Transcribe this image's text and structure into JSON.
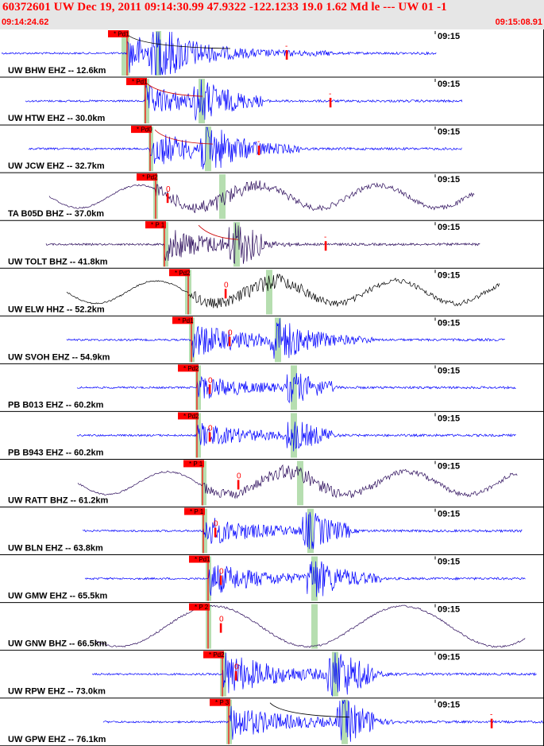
{
  "header": {
    "title": "60372601 UW Dec 19, 2011 09:14:30.99    47.9322 -122.1233 19.0 1.62 Md le --- UW 01   -1",
    "start_time": "09:14:24.62",
    "end_time": "09:15:08.91"
  },
  "colors": {
    "header_text": "#ff0000",
    "header_bg": "#e6e6e6",
    "pick_flag": "#ff0000",
    "window_band": "#b6deb0"
  },
  "time_marker": "09:15",
  "traces": [
    {
      "label": "UW BHW EHZ -- 12.6km",
      "pick": "Pd1",
      "color": "#0000ff",
      "style": "hf",
      "marker": "-"
    },
    {
      "label": "UW HTW EHZ -- 30.0km",
      "pick": "Pd1",
      "color": "#0000ff",
      "style": "hf",
      "marker": "-"
    },
    {
      "label": "UW JCW EHZ -- 32.7km",
      "pick": "Pd0",
      "color": "#0000ff",
      "style": "hf",
      "marker": "-"
    },
    {
      "label": "TA B05D BHZ -- 37.0km",
      "pick": "Pd2",
      "color": "#2a0a5a",
      "style": "lf",
      "marker": "0"
    },
    {
      "label": "UW TOLT BHZ -- 41.8km",
      "pick": "P 1",
      "color": "#2a0a5a",
      "style": "hf",
      "marker": "-"
    },
    {
      "label": "UW ELW HHZ -- 52.2km",
      "pick": "Pd2",
      "color": "#000000",
      "style": "lf",
      "marker": "0"
    },
    {
      "label": "UW SVOH EHZ -- 54.9km",
      "pick": "Pd1",
      "color": "#0000ff",
      "style": "hf",
      "marker": "0"
    },
    {
      "label": "PB B013 EHZ -- 60.2km",
      "pick": "Pd2",
      "color": "#0000ff",
      "style": "hf",
      "marker": "0"
    },
    {
      "label": "PB B943 EHZ -- 60.2km",
      "pick": "Pd2",
      "color": "#0000ff",
      "style": "hf",
      "marker": "0"
    },
    {
      "label": "UW RATT BHZ -- 61.2km",
      "pick": "P 1",
      "color": "#2a0a5a",
      "style": "lf",
      "marker": "0"
    },
    {
      "label": "UW BLN EHZ -- 63.8km",
      "pick": "P 1",
      "color": "#0000ff",
      "style": "hf",
      "marker": "0"
    },
    {
      "label": "UW GMW EHZ -- 65.5km",
      "pick": "Pd1",
      "color": "#0000ff",
      "style": "hf",
      "marker": "0"
    },
    {
      "label": "UW GNW BHZ -- 66.5km",
      "pick": "P 2",
      "color": "#2a0a5a",
      "style": "slow",
      "marker": "0"
    },
    {
      "label": "UW RPW EHZ -- 73.0km",
      "pick": "Pd2",
      "color": "#0000ff",
      "style": "hf",
      "marker": "0"
    },
    {
      "label": "UW GPW EHZ -- 76.1km",
      "pick": "P 3",
      "color": "#0000ff",
      "style": "hf",
      "marker": "-"
    }
  ]
}
